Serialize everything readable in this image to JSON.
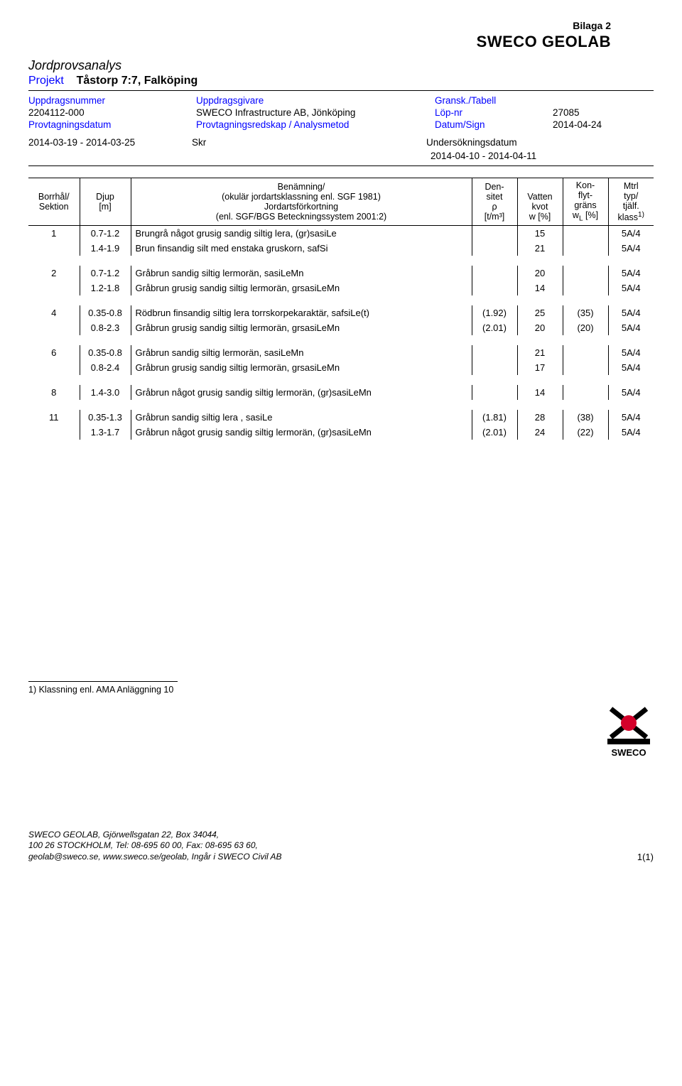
{
  "header": {
    "bilaga": "Bilaga 2",
    "brand": "SWECO GEOLAB",
    "title": "Jordprovsanalys",
    "projekt_label": "Projekt",
    "projekt_value": "Tåstorp 7:7, Falköping"
  },
  "meta": {
    "uppdragsnummer_label": "Uppdragsnummer",
    "uppdragsnummer": "2204112-000",
    "uppdragsgivare_label": "Uppdragsgivare",
    "uppdragsgivare": "SWECO Infrastructure AB, Jönköping",
    "gransk_label": "Gransk./Tabell",
    "lopnr_label": "Löp-nr",
    "lopnr": "27085",
    "provtagningsdatum_label": "Provtagningsdatum",
    "provtagningsdatum": "2014-03-19  -  2014-03-25",
    "provtagningsredskap_label": "Provtagningsredskap / Analysmetod",
    "provtagningsredskap": "Skr",
    "datumsign_label": "Datum/Sign",
    "datumsign": "2014-04-24",
    "undersokningsdatum_label": "Undersökningsdatum",
    "undersokningsdatum": "2014-04-10    -    2014-04-11"
  },
  "table": {
    "head": {
      "borrhal": "Borrhål/\nSektion",
      "djup": "Djup\n[m]",
      "ben_l1": "Benämning/",
      "ben_l2": "(okulär jordartsklassning enl. SGF 1981)",
      "ben_l3": "Jordartsförkortning",
      "ben_l4": "(enl. SGF/BGS Beteckningssystem 2001:2)",
      "dens_l1": "Den-",
      "dens_l2": "sitet",
      "dens_l3": "ρ",
      "dens_l4": "[t/m³]",
      "vatten_l1": "Vatten",
      "vatten_l2": "kvot",
      "vatten_l3": "w [%]",
      "kon_l1": "Kon-",
      "kon_l2": "flyt-",
      "kon_l3": "gräns",
      "kon_l4_pre": "w",
      "kon_l4_sub": "L",
      "kon_l4_post": " [%]",
      "mtrl_l1": "Mtrl",
      "mtrl_l2": "typ/",
      "mtrl_l3": "tjälf.",
      "mtrl_l4_pre": "klass",
      "mtrl_l4_sup": "1)"
    },
    "groups": [
      {
        "borrhal": "1",
        "rows": [
          {
            "djup": "0.7-1.2",
            "ben": "Brungrå något grusig sandig siltig lera, (gr)sasiLe",
            "dens": "",
            "vatten": "15",
            "kon": "",
            "mtrl": "5A/4"
          },
          {
            "djup": "1.4-1.9",
            "ben": "Brun finsandig silt med enstaka gruskorn, safSi",
            "dens": "",
            "vatten": "21",
            "kon": "",
            "mtrl": "5A/4"
          }
        ]
      },
      {
        "borrhal": "2",
        "rows": [
          {
            "djup": "0.7-1.2",
            "ben": "Gråbrun sandig siltig lermorän, sasiLeMn",
            "dens": "",
            "vatten": "20",
            "kon": "",
            "mtrl": "5A/4"
          },
          {
            "djup": "1.2-1.8",
            "ben": "Gråbrun grusig sandig siltig lermorän, grsasiLeMn",
            "dens": "",
            "vatten": "14",
            "kon": "",
            "mtrl": "5A/4"
          }
        ]
      },
      {
        "borrhal": "4",
        "rows": [
          {
            "djup": "0.35-0.8",
            "ben": "Rödbrun finsandig siltig lera torrskorpekaraktär, safsiLe(t)",
            "dens": "(1.92)",
            "vatten": "25",
            "kon": "(35)",
            "mtrl": "5A/4"
          },
          {
            "djup": "0.8-2.3",
            "ben": "Gråbrun grusig sandig siltig lermorän, grsasiLeMn",
            "dens": "(2.01)",
            "vatten": "20",
            "kon": "(20)",
            "mtrl": "5A/4"
          }
        ]
      },
      {
        "borrhal": "6",
        "rows": [
          {
            "djup": "0.35-0.8",
            "ben": "Gråbrun sandig siltig lermorän, sasiLeMn",
            "dens": "",
            "vatten": "21",
            "kon": "",
            "mtrl": "5A/4"
          },
          {
            "djup": "0.8-2.4",
            "ben": "Gråbrun grusig sandig siltig lermorän, grsasiLeMn",
            "dens": "",
            "vatten": "17",
            "kon": "",
            "mtrl": "5A/4"
          }
        ]
      },
      {
        "borrhal": "8",
        "rows": [
          {
            "djup": "1.4-3.0",
            "ben": "Gråbrun något grusig sandig siltig lermorän, (gr)sasiLeMn",
            "dens": "",
            "vatten": "14",
            "kon": "",
            "mtrl": "5A/4"
          }
        ]
      },
      {
        "borrhal": "11",
        "rows": [
          {
            "djup": "0.35-1.3",
            "ben": "Gråbrun sandig siltig lera , sasiLe",
            "dens": "(1.81)",
            "vatten": "28",
            "kon": "(38)",
            "mtrl": "5A/4"
          },
          {
            "djup": "1.3-1.7",
            "ben": "Gråbrun något grusig sandig siltig lermorän, (gr)sasiLeMn",
            "dens": "(2.01)",
            "vatten": "24",
            "kon": "(22)",
            "mtrl": "5A/4"
          }
        ]
      }
    ]
  },
  "footnote": "1) Klassning enl. AMA Anläggning 10",
  "footer": {
    "line1": "SWECO GEOLAB, Gjörwellsgatan 22, Box 34044,",
    "line2": "100 26 STOCKHOLM, Tel: 08-695 60 00, Fax: 08-695 63 60,",
    "line3": "geolab@sweco.se, www.sweco.se/geolab, Ingår i SWECO Civil AB",
    "page": "1(1)",
    "logo_label": "SWECO"
  },
  "style": {
    "blue": "#0000ff",
    "black": "#000000",
    "logo_red": "#d4002a"
  }
}
